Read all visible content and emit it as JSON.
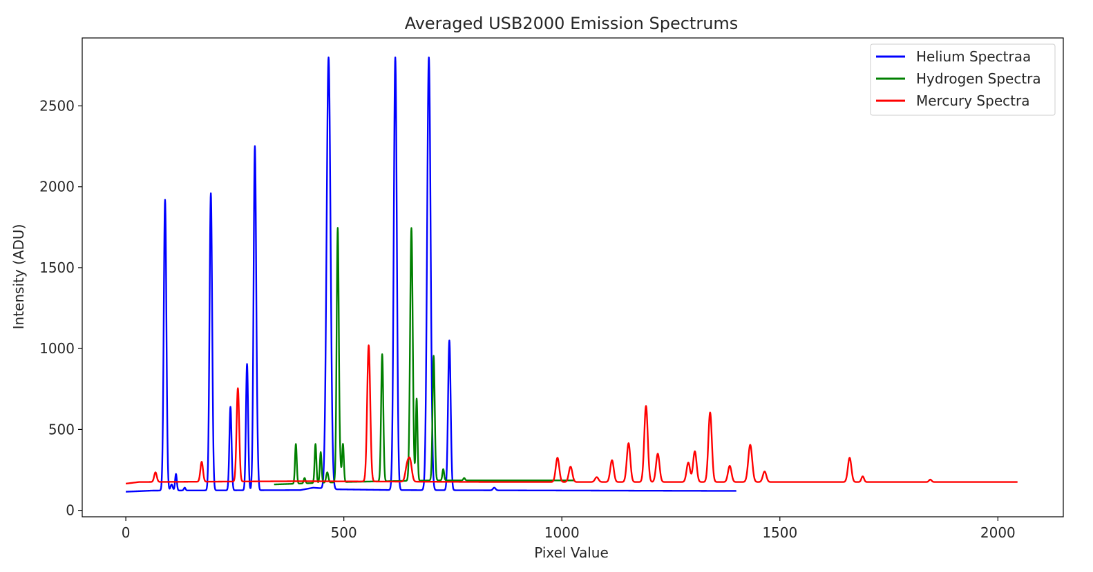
{
  "chart_data": {
    "type": "line",
    "title": "Averaged USB2000 Emission Spectrums",
    "xlabel": "Pixel Value",
    "ylabel": "Intensity (ADU)",
    "xlim": [
      -100,
      2150
    ],
    "ylim": [
      -40,
      2920
    ],
    "xticks": [
      0,
      500,
      1000,
      1500,
      2000
    ],
    "yticks": [
      0,
      500,
      1000,
      1500,
      2000,
      2500
    ],
    "grid": false,
    "legend_position": "top-right",
    "series": [
      {
        "name": "Helium Spectraa",
        "color": "#0000ff",
        "range": [
          0,
          1400
        ],
        "baseline": [
          [
            0,
            115
          ],
          [
            60,
            122
          ],
          [
            400,
            125
          ],
          [
            430,
            140
          ],
          [
            480,
            130
          ],
          [
            620,
            125
          ],
          [
            1400,
            120
          ]
        ],
        "peaks": [
          [
            90,
            1920,
            3.0
          ],
          [
            105,
            160,
            2.5
          ],
          [
            115,
            225,
            2.0
          ],
          [
            135,
            140,
            2.0
          ],
          [
            195,
            1960,
            3.0
          ],
          [
            240,
            640,
            2.5
          ],
          [
            278,
            905,
            2.5
          ],
          [
            296,
            2250,
            3.0
          ],
          [
            302,
            255,
            2.0
          ],
          [
            465,
            2800,
            4.5
          ],
          [
            618,
            2800,
            3.5
          ],
          [
            695,
            2800,
            4.0
          ],
          [
            742,
            1050,
            3.0
          ],
          [
            845,
            140,
            3.0
          ]
        ]
      },
      {
        "name": "Hydrogen Spectra",
        "color": "#008000",
        "range": [
          340,
          1030
        ],
        "baseline": [
          [
            340,
            160
          ],
          [
            500,
            175
          ],
          [
            700,
            185
          ],
          [
            1030,
            185
          ]
        ],
        "peaks": [
          [
            390,
            410,
            2.0
          ],
          [
            410,
            200,
            2.0
          ],
          [
            435,
            410,
            2.0
          ],
          [
            447,
            360,
            2.0
          ],
          [
            462,
            235,
            2.5
          ],
          [
            486,
            1745,
            2.5
          ],
          [
            492,
            260,
            2.0
          ],
          [
            498,
            410,
            2.0
          ],
          [
            588,
            965,
            2.5
          ],
          [
            655,
            1745,
            3.0
          ],
          [
            667,
            690,
            2.0
          ],
          [
            706,
            955,
            2.5
          ],
          [
            728,
            255,
            2.0
          ],
          [
            776,
            200,
            2.0
          ]
        ]
      },
      {
        "name": "Mercury Spectra",
        "color": "#ff0000",
        "range": [
          0,
          2045
        ],
        "baseline": [
          [
            0,
            165
          ],
          [
            30,
            175
          ],
          [
            400,
            180
          ],
          [
            850,
            175
          ],
          [
            2045,
            175
          ]
        ],
        "peaks": [
          [
            68,
            235,
            3.0
          ],
          [
            174,
            300,
            3.0
          ],
          [
            257,
            755,
            3.0
          ],
          [
            557,
            1020,
            3.5
          ],
          [
            645,
            270,
            4.0
          ],
          [
            652,
            300,
            4.0
          ],
          [
            990,
            325,
            4.0
          ],
          [
            1020,
            270,
            4.0
          ],
          [
            1080,
            205,
            4.0
          ],
          [
            1115,
            310,
            4.0
          ],
          [
            1153,
            415,
            4.0
          ],
          [
            1193,
            645,
            4.0
          ],
          [
            1220,
            350,
            4.0
          ],
          [
            1290,
            295,
            4.0
          ],
          [
            1305,
            365,
            4.0
          ],
          [
            1340,
            605,
            4.0
          ],
          [
            1385,
            275,
            4.0
          ],
          [
            1432,
            405,
            4.5
          ],
          [
            1465,
            240,
            4.0
          ],
          [
            1660,
            325,
            4.0
          ],
          [
            1690,
            210,
            3.0
          ],
          [
            1845,
            190,
            3.0
          ]
        ]
      }
    ]
  }
}
